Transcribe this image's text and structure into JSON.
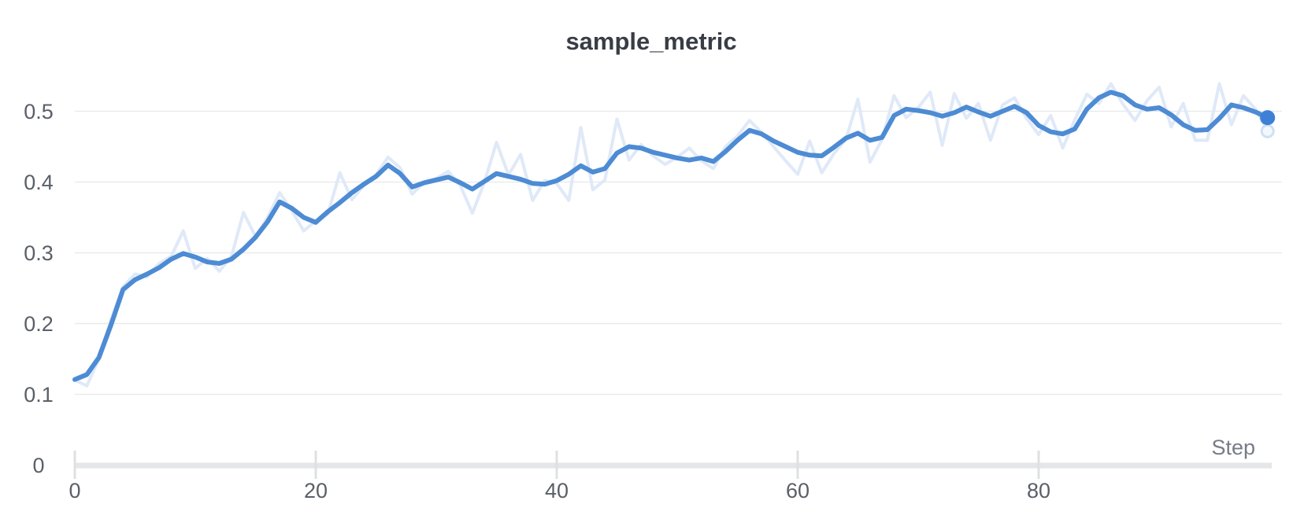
{
  "chart": {
    "title": "sample_metric",
    "x_axis_label": "Step"
  },
  "chart_data": {
    "type": "line",
    "title": "sample_metric",
    "xlabel": "Step",
    "ylabel": "",
    "xlim": [
      0,
      99
    ],
    "ylim": [
      0,
      0.55
    ],
    "grid": "horizontal-only",
    "legend": "none",
    "x_tick_values": [
      0,
      20,
      40,
      60,
      80
    ],
    "x_tick_labels": [
      "0",
      "20",
      "40",
      "60",
      "80"
    ],
    "y_tick_values": [
      0,
      0.1,
      0.2,
      0.3,
      0.4,
      0.5
    ],
    "y_tick_labels": [
      "0",
      "0.1",
      "0.2",
      "0.3",
      "0.4",
      "0.5"
    ],
    "x": [
      0,
      1,
      2,
      3,
      4,
      5,
      6,
      7,
      8,
      9,
      10,
      11,
      12,
      13,
      14,
      15,
      16,
      17,
      18,
      19,
      20,
      21,
      22,
      23,
      24,
      25,
      26,
      27,
      28,
      29,
      30,
      31,
      32,
      33,
      34,
      35,
      36,
      37,
      38,
      39,
      40,
      41,
      42,
      43,
      44,
      45,
      46,
      47,
      48,
      49,
      50,
      51,
      52,
      53,
      54,
      55,
      56,
      57,
      58,
      59,
      60,
      61,
      62,
      63,
      64,
      65,
      66,
      67,
      68,
      69,
      70,
      71,
      72,
      73,
      74,
      75,
      76,
      77,
      78,
      79,
      80,
      81,
      82,
      83,
      84,
      85,
      86,
      87,
      88,
      89,
      90,
      91,
      92,
      93,
      94,
      95,
      96,
      97,
      98,
      99
    ],
    "series": [
      {
        "name": "smoothed",
        "color": "#4d8bd4",
        "end_marker_color": "#3d80d6",
        "values": [
          0.121,
          0.128,
          0.152,
          0.198,
          0.248,
          0.262,
          0.27,
          0.279,
          0.291,
          0.299,
          0.294,
          0.287,
          0.285,
          0.291,
          0.305,
          0.322,
          0.344,
          0.372,
          0.363,
          0.35,
          0.343,
          0.358,
          0.371,
          0.385,
          0.397,
          0.408,
          0.424,
          0.412,
          0.393,
          0.399,
          0.403,
          0.407,
          0.399,
          0.39,
          0.401,
          0.412,
          0.408,
          0.404,
          0.398,
          0.397,
          0.402,
          0.411,
          0.423,
          0.414,
          0.419,
          0.441,
          0.45,
          0.448,
          0.442,
          0.438,
          0.434,
          0.431,
          0.434,
          0.429,
          0.443,
          0.459,
          0.473,
          0.468,
          0.458,
          0.45,
          0.442,
          0.438,
          0.437,
          0.449,
          0.462,
          0.469,
          0.459,
          0.463,
          0.494,
          0.503,
          0.501,
          0.498,
          0.493,
          0.498,
          0.506,
          0.499,
          0.493,
          0.5,
          0.507,
          0.498,
          0.48,
          0.471,
          0.468,
          0.475,
          0.503,
          0.519,
          0.527,
          0.522,
          0.509,
          0.503,
          0.505,
          0.495,
          0.481,
          0.473,
          0.474,
          0.49,
          0.509,
          0.505,
          0.499,
          0.491
        ]
      },
      {
        "name": "original",
        "color": "#dfe9f8",
        "end_marker_color": "#cfe0f5",
        "values": [
          0.12,
          0.112,
          0.15,
          0.205,
          0.252,
          0.27,
          0.266,
          0.285,
          0.295,
          0.331,
          0.278,
          0.292,
          0.274,
          0.295,
          0.357,
          0.323,
          0.35,
          0.385,
          0.36,
          0.331,
          0.345,
          0.355,
          0.413,
          0.375,
          0.395,
          0.41,
          0.435,
          0.42,
          0.383,
          0.4,
          0.405,
          0.415,
          0.395,
          0.356,
          0.4,
          0.456,
          0.41,
          0.439,
          0.374,
          0.402,
          0.398,
          0.374,
          0.477,
          0.389,
          0.403,
          0.489,
          0.431,
          0.453,
          0.437,
          0.425,
          0.435,
          0.448,
          0.43,
          0.419,
          0.45,
          0.465,
          0.487,
          0.47,
          0.45,
          0.43,
          0.411,
          0.458,
          0.413,
          0.44,
          0.46,
          0.517,
          0.428,
          0.46,
          0.522,
          0.491,
          0.505,
          0.527,
          0.452,
          0.525,
          0.49,
          0.511,
          0.459,
          0.509,
          0.519,
          0.49,
          0.467,
          0.494,
          0.448,
          0.488,
          0.524,
          0.511,
          0.539,
          0.51,
          0.487,
          0.515,
          0.534,
          0.478,
          0.511,
          0.459,
          0.459,
          0.539,
          0.481,
          0.522,
          0.503,
          0.472
        ]
      }
    ]
  },
  "colors": {
    "background": "#ffffff",
    "gridline": "#e9eaec",
    "axis_line": "#e5e6e8",
    "tick_mark": "#dfe0e2",
    "tick_label": "#5a5f68",
    "axis_title": "#767c86",
    "title": "#383d45",
    "smoothed_line": "#4d8bd4",
    "raw_line": "#dfe9f8"
  }
}
